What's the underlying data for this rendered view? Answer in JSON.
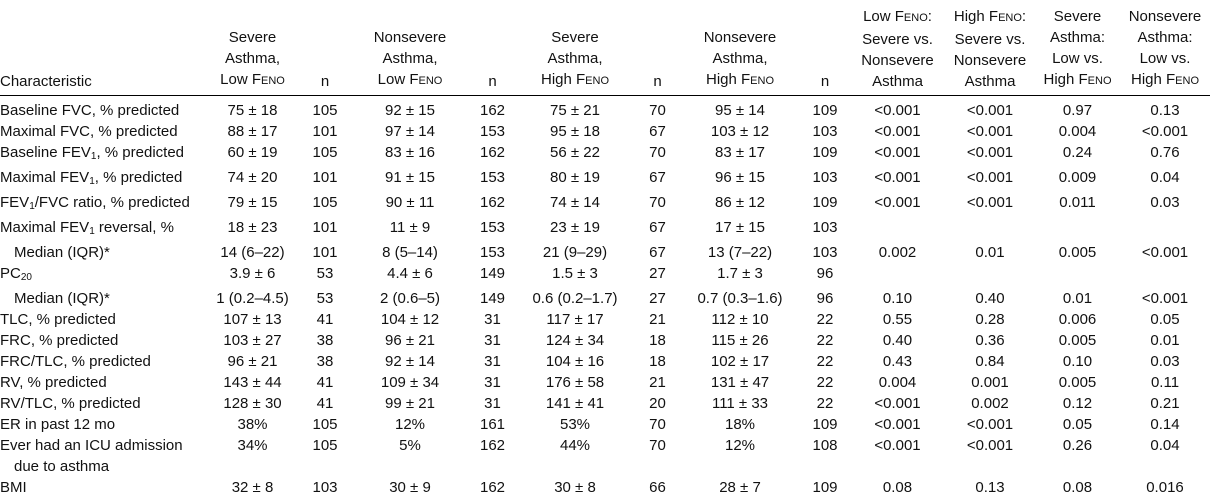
{
  "headers": [
    {
      "lines": [
        "Characteristic"
      ]
    },
    {
      "lines": [
        "Severe",
        "Asthma,",
        "Low F"
      ],
      "sub": "ENO"
    },
    {
      "lines": [
        "n"
      ]
    },
    {
      "lines": [
        "Nonsevere",
        "Asthma,",
        "Low F"
      ],
      "sub": "ENO"
    },
    {
      "lines": [
        "n"
      ]
    },
    {
      "lines": [
        "Severe",
        "Asthma,",
        "High F"
      ],
      "sub": "ENO"
    },
    {
      "lines": [
        "n"
      ]
    },
    {
      "lines": [
        "Nonsevere",
        "Asthma,",
        "High F"
      ],
      "sub": "ENO"
    },
    {
      "lines": [
        "n"
      ]
    },
    {
      "lines": [
        "Low F",
        "Severe vs.",
        "Nonsevere",
        "Asthma"
      ],
      "sub_first": "ENO",
      "first_suffix": ":"
    },
    {
      "lines": [
        "High F",
        "Severe vs.",
        "Nonsevere",
        "Asthma"
      ],
      "sub_first": "ENO",
      "first_suffix": ":"
    },
    {
      "lines": [
        "Severe",
        "Asthma:",
        "Low vs.",
        "High F"
      ],
      "sub": "ENO"
    },
    {
      "lines": [
        "Nonsevere",
        "Asthma:",
        "Low vs.",
        "High F"
      ],
      "sub": "ENO"
    }
  ],
  "rows": [
    {
      "label": "Baseline FVC, % predicted",
      "cells": [
        "75 ± 18",
        "105",
        "92 ± 15",
        "162",
        "75 ± 21",
        "70",
        "95 ± 14",
        "109",
        "<0.001",
        "<0.001",
        "0.97",
        "0.13"
      ]
    },
    {
      "label": "Maximal FVC, % predicted",
      "cells": [
        "88 ± 17",
        "101",
        "97 ± 14",
        "153",
        "95 ± 18",
        "67",
        "103 ± 12",
        "103",
        "<0.001",
        "<0.001",
        "0.004",
        "<0.001"
      ]
    },
    {
      "label_pre": "Baseline FEV",
      "label_sub": "1",
      "label_post": ", % predicted",
      "cells": [
        "60 ± 19",
        "105",
        "83 ± 16",
        "162",
        "56 ± 22",
        "70",
        "83 ± 17",
        "109",
        "<0.001",
        "<0.001",
        "0.24",
        "0.76"
      ]
    },
    {
      "label_pre": "Maximal FEV",
      "label_sub": "1",
      "label_post": ", % predicted",
      "cells": [
        "74 ± 20",
        "101",
        "91 ± 15",
        "153",
        "80 ± 19",
        "67",
        "96 ± 15",
        "103",
        "<0.001",
        "<0.001",
        "0.009",
        "0.04"
      ]
    },
    {
      "label_pre": "FEV",
      "label_sub": "1",
      "label_post": "/FVC ratio, % predicted",
      "cells": [
        "79 ± 15",
        "105",
        "90 ± 11",
        "162",
        "74 ± 14",
        "70",
        "86 ± 12",
        "109",
        "<0.001",
        "<0.001",
        "0.011",
        "0.03"
      ]
    },
    {
      "label_pre": "Maximal FEV",
      "label_sub": "1",
      "label_post": " reversal, %",
      "cells": [
        "18 ± 23",
        "101",
        "11 ± 9",
        "153",
        "23 ± 19",
        "67",
        "17 ± 15",
        "103",
        "",
        "",
        "",
        ""
      ]
    },
    {
      "label": "Median (IQR)*",
      "indent": true,
      "cells": [
        "14 (6–22)",
        "101",
        "8 (5–14)",
        "153",
        "21 (9–29)",
        "67",
        "13 (7–22)",
        "103",
        "0.002",
        "0.01",
        "0.005",
        "<0.001"
      ]
    },
    {
      "label_pre": "PC",
      "label_sub": "20",
      "label_post": "",
      "cells": [
        "3.9 ± 6",
        "53",
        "4.4 ± 6",
        "149",
        "1.5 ± 3",
        "27",
        "1.7 ± 3",
        "96",
        "",
        "",
        "",
        ""
      ]
    },
    {
      "label": "Median (IQR)*",
      "indent": true,
      "cells": [
        "1 (0.2–4.5)",
        "53",
        "2 (0.6–5)",
        "149",
        "0.6 (0.2–1.7)",
        "27",
        "0.7 (0.3–1.6)",
        "96",
        "0.10",
        "0.40",
        "0.01",
        "<0.001"
      ]
    },
    {
      "label": "TLC, % predicted",
      "cells": [
        "107 ± 13",
        "41",
        "104 ± 12",
        "31",
        "117 ± 17",
        "21",
        "112 ± 10",
        "22",
        "0.55",
        "0.28",
        "0.006",
        "0.05"
      ]
    },
    {
      "label": "FRC, % predicted",
      "cells": [
        "103 ± 27",
        "38",
        "96 ± 21",
        "31",
        "124 ± 34",
        "18",
        "115 ± 26",
        "22",
        "0.40",
        "0.36",
        "0.005",
        "0.01"
      ]
    },
    {
      "label": "FRC/TLC, % predicted",
      "cells": [
        "96 ± 21",
        "38",
        "92 ± 14",
        "31",
        "104 ± 16",
        "18",
        "102 ± 17",
        "22",
        "0.43",
        "0.84",
        "0.10",
        "0.03"
      ]
    },
    {
      "label": "RV, % predicted",
      "cells": [
        "143 ± 44",
        "41",
        "109 ± 34",
        "31",
        "176 ± 58",
        "21",
        "131 ± 47",
        "22",
        "0.004",
        "0.001",
        "0.005",
        "0.11"
      ]
    },
    {
      "label": "RV/TLC, % predicted",
      "cells": [
        "128 ± 30",
        "41",
        "99 ± 21",
        "31",
        "141 ± 41",
        "20",
        "111 ± 33",
        "22",
        "<0.001",
        "0.002",
        "0.12",
        "0.21"
      ]
    },
    {
      "label": "ER in past 12 mo",
      "cells": [
        "38%",
        "105",
        "12%",
        "161",
        "53%",
        "70",
        "18%",
        "109",
        "<0.001",
        "<0.001",
        "0.05",
        "0.14"
      ]
    },
    {
      "label": "Ever had an ICU admission",
      "cells": [
        "34%",
        "105",
        "5%",
        "162",
        "44%",
        "70",
        "12%",
        "108",
        "<0.001",
        "<0.001",
        "0.26",
        "0.04"
      ]
    },
    {
      "label": "due to asthma",
      "indent": true,
      "cells": [
        "",
        "",
        "",
        "",
        "",
        "",
        "",
        "",
        "",
        "",
        "",
        ""
      ]
    },
    {
      "label": "BMI",
      "cells": [
        "32 ± 8",
        "103",
        "30 ± 9",
        "162",
        "30 ± 8",
        "66",
        "28 ± 7",
        "109",
        "0.08",
        "0.13",
        "0.08",
        "0.016"
      ]
    }
  ]
}
